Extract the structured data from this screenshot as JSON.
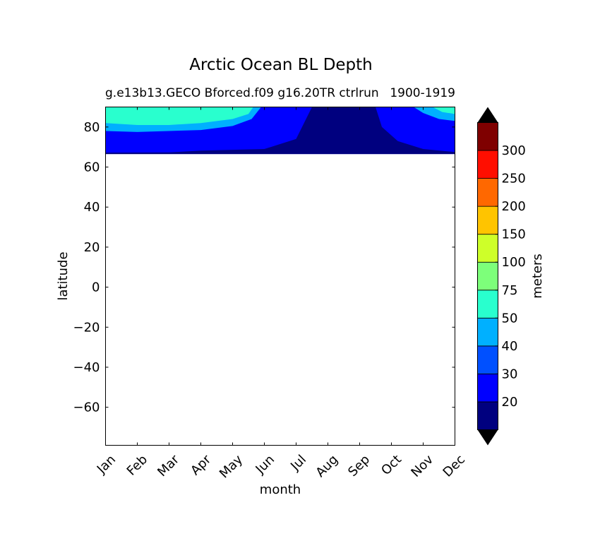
{
  "chart_data": {
    "type": "contourf",
    "title": "Arctic Ocean BL Depth",
    "subtitle_left": "g.e13b13.GECO Bforced.f09 g16.20TR ctrlrun",
    "subtitle_right": "1900-1919",
    "xlabel": "month",
    "ylabel": "latitude",
    "colorbar_label": "meters",
    "x_categories": [
      "Jan",
      "Feb",
      "Mar",
      "Apr",
      "May",
      "Jun",
      "Jul",
      "Aug",
      "Sep",
      "Oct",
      "Nov",
      "Dec"
    ],
    "ylim": [
      -79,
      90
    ],
    "y_ticks": [
      80,
      60,
      40,
      20,
      0,
      -20,
      -40,
      -60
    ],
    "y_tick_labels": [
      "80",
      "60",
      "40",
      "20",
      "0",
      "−20",
      "−40",
      "−60"
    ],
    "data_lat_min": 66.5,
    "levels": [
      10,
      20,
      30,
      40,
      50,
      75,
      100,
      150,
      200,
      250,
      300,
      350
    ],
    "level_labels": [
      "20",
      "30",
      "40",
      "50",
      "75",
      "100",
      "150",
      "200",
      "250",
      "300"
    ],
    "colors": [
      "#00007f",
      "#0000ff",
      "#0050ff",
      "#00b0ff",
      "#29ffce",
      "#7dff7a",
      "#ceff29",
      "#ffc400",
      "#ff6800",
      "#ff0e00",
      "#7f0000"
    ],
    "extend_colors": {
      "under": "#000000",
      "over": "#000000"
    },
    "fields": [
      {
        "name": "band",
        "level_range": [
          10,
          20
        ],
        "color": "#00007f",
        "points": [
          [
            0,
            66.5
          ],
          [
            0,
            67.2
          ],
          [
            2,
            67.3
          ],
          [
            3,
            68.2
          ],
          [
            5,
            69
          ],
          [
            6,
            74
          ],
          [
            6.5,
            90
          ],
          [
            8.5,
            90
          ],
          [
            8.7,
            80
          ],
          [
            9.2,
            73
          ],
          [
            10,
            69
          ],
          [
            11,
            67.5
          ],
          [
            11,
            66.5
          ]
        ]
      },
      {
        "name": "band",
        "level_range": [
          40,
          50
        ],
        "color": "#00b0ff",
        "points": [
          [
            0,
            90
          ],
          [
            0,
            78
          ],
          [
            1,
            77.5
          ],
          [
            2,
            78
          ],
          [
            3,
            78.5
          ],
          [
            4,
            80.5
          ],
          [
            4.6,
            84
          ],
          [
            4.9,
            90
          ]
        ]
      },
      {
        "name": "band",
        "level_range": [
          50,
          75
        ],
        "color": "#29ffce",
        "points": [
          [
            0,
            90
          ],
          [
            0,
            82
          ],
          [
            1,
            81
          ],
          [
            2,
            81
          ],
          [
            3,
            82
          ],
          [
            4,
            84
          ],
          [
            4.5,
            86.5
          ],
          [
            4.65,
            90
          ]
        ]
      },
      {
        "name": "band",
        "level_range": [
          40,
          50
        ],
        "color": "#00b0ff",
        "points": [
          [
            11,
            90
          ],
          [
            9.7,
            90
          ],
          [
            10,
            87
          ],
          [
            10.5,
            84
          ],
          [
            11,
            83
          ]
        ]
      },
      {
        "name": "band",
        "level_range": [
          50,
          75
        ],
        "color": "#29ffce",
        "points": [
          [
            11,
            90
          ],
          [
            10.3,
            90
          ],
          [
            10.6,
            87.5
          ],
          [
            11,
            86.5
          ]
        ]
      }
    ]
  }
}
